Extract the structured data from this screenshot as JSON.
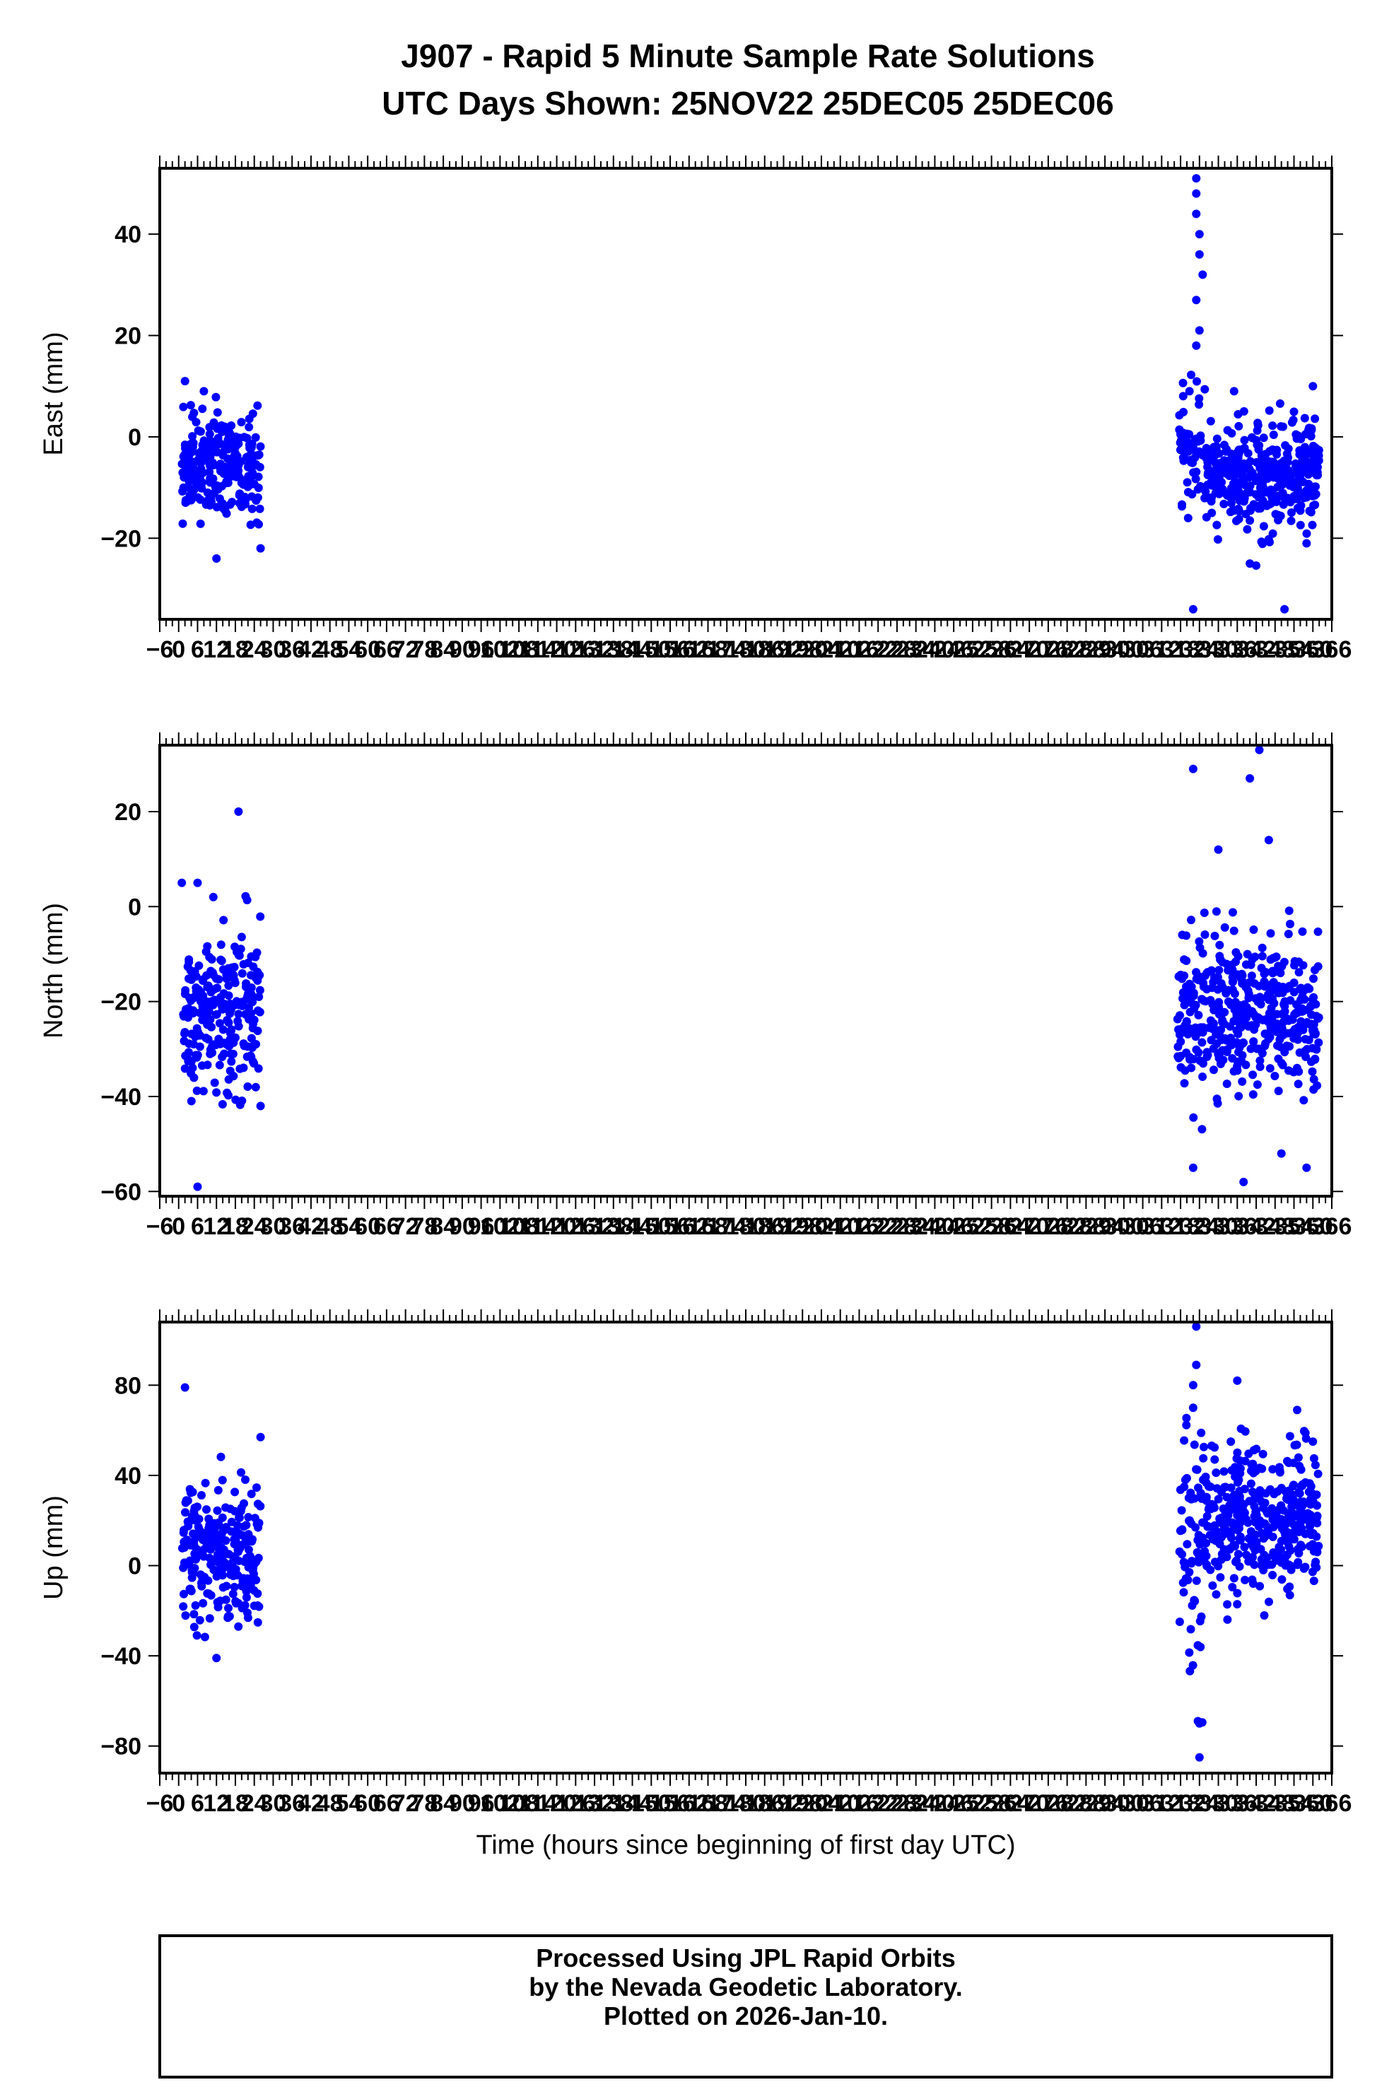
{
  "title": [
    "J907 - Rapid 5 Minute Sample Rate Solutions",
    "UTC Days Shown:  25NOV22 25DEC05 25DEC06"
  ],
  "footer": [
    "Processed Using JPL Rapid Orbits",
    "by the Nevada Geodetic Laboratory.",
    "Plotted on 2026-Jan-10."
  ],
  "colors": {
    "points": "#0000ff",
    "axes": "#000000"
  },
  "chart_data": [
    {
      "type": "scatter",
      "ylabel": "East (mm)",
      "xlabel": "",
      "xlim": [
        -6,
        366
      ],
      "ylim": [
        -36,
        53
      ],
      "yticks": [
        -20,
        0,
        20,
        40
      ],
      "series": [
        {
          "clusters": [
            {
              "x_range": [
                1,
                26
              ],
              "center": -6,
              "spread": 5.5,
              "count": 240,
              "outliers": [
                [
                  2,
                  11
                ],
                [
                  8,
                  9
                ],
                [
                  12,
                  -24
                ],
                [
                  26,
                  -22
                ]
              ]
            },
            {
              "x_range": [
                317,
                326
              ],
              "center": -2,
              "spread": 6,
              "count": 60,
              "outliers": [
                [
                  323,
                  51
                ],
                [
                  323,
                  48
                ],
                [
                  323,
                  44
                ],
                [
                  324,
                  40
                ],
                [
                  324,
                  36
                ],
                [
                  325,
                  32
                ],
                [
                  323,
                  27
                ],
                [
                  324,
                  21
                ],
                [
                  323,
                  18
                ],
                [
                  322,
                  -34
                ]
              ]
            },
            {
              "x_range": [
                326,
                362
              ],
              "center": -7,
              "spread": 5,
              "count": 380,
              "outliers": [
                [
                  335,
                  9
                ],
                [
                  340,
                  -25
                ],
                [
                  351,
                  -34
                ],
                [
                  360,
                  10
                ],
                [
                  358,
                  -21
                ]
              ]
            }
          ]
        }
      ]
    },
    {
      "type": "scatter",
      "ylabel": "North (mm)",
      "xlabel": "",
      "xlim": [
        -6,
        366
      ],
      "ylim": [
        -61,
        34
      ],
      "yticks": [
        -60,
        -40,
        -20,
        0,
        20
      ],
      "series": [
        {
          "clusters": [
            {
              "x_range": [
                1,
                26
              ],
              "center": -23,
              "spread": 8,
              "count": 250,
              "outliers": [
                [
                  1,
                  5
                ],
                [
                  6,
                  5
                ],
                [
                  11,
                  2
                ],
                [
                  19,
                  20
                ],
                [
                  6,
                  -59
                ],
                [
                  26,
                  -42
                ]
              ]
            },
            {
              "x_range": [
                317,
                362
              ],
              "center": -22,
              "spread": 8,
              "count": 440,
              "outliers": [
                [
                  322,
                  29
                ],
                [
                  343,
                  33
                ],
                [
                  340,
                  27
                ],
                [
                  330,
                  12
                ],
                [
                  346,
                  14
                ],
                [
                  322,
                  -55
                ],
                [
                  338,
                  -58
                ],
                [
                  350,
                  -52
                ],
                [
                  358,
                  -55
                ]
              ]
            }
          ]
        }
      ]
    },
    {
      "type": "scatter",
      "ylabel": "Up (mm)",
      "xlabel": "Time (hours since beginning of first day UTC)",
      "xlim": [
        -6,
        366
      ],
      "ylim": [
        -92,
        108
      ],
      "yticks": [
        -80,
        -40,
        0,
        40,
        80
      ],
      "xticks": [
        -6,
        0,
        6,
        12,
        18,
        24,
        30,
        36,
        42,
        48,
        54,
        60,
        66,
        72,
        78,
        84,
        90,
        96,
        102,
        108,
        114,
        120,
        126,
        132,
        138,
        144,
        150,
        156,
        162,
        168,
        174,
        180,
        186,
        192,
        198,
        204,
        210,
        216,
        222,
        228,
        234,
        240,
        246,
        252,
        258,
        264,
        270,
        276,
        282,
        288,
        294,
        300,
        306,
        312,
        318,
        324,
        330,
        336,
        342,
        348,
        354,
        360,
        366
      ],
      "series": [
        {
          "clusters": [
            {
              "x_range": [
                1,
                26
              ],
              "center": 5,
              "spread": 14,
              "count": 250,
              "outliers": [
                [
                  2,
                  79
                ],
                [
                  26,
                  57
                ],
                [
                  12,
                  -41
                ]
              ]
            },
            {
              "x_range": [
                317,
                326
              ],
              "center": 5,
              "spread": 30,
              "count": 70,
              "outliers": [
                [
                  323,
                  106
                ],
                [
                  323,
                  89
                ],
                [
                  322,
                  80
                ],
                [
                  322,
                  70
                ],
                [
                  324,
                  -70
                ],
                [
                  324,
                  -85
                ]
              ]
            },
            {
              "x_range": [
                326,
                362
              ],
              "center": 20,
              "spread": 15,
              "count": 380,
              "outliers": [
                [
                  336,
                  82
                ],
                [
                  355,
                  69
                ],
                [
                  360,
                  55
                ]
              ]
            }
          ]
        }
      ]
    }
  ]
}
